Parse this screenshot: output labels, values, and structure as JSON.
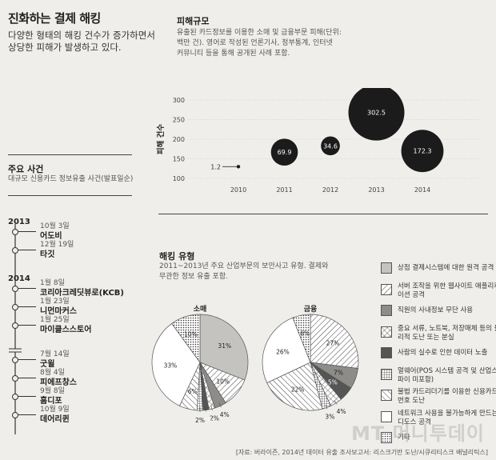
{
  "header": {
    "title": "진화하는 결제 해킹",
    "subtitle": "다양한 형태의 해킹 건수가 증가하면서 상당한 피해가 발생하고 있다."
  },
  "damage": {
    "title": "피해규모",
    "desc_lines": [
      "유출된 카드정보를 이용한 소매 및 금융부문 피해(단위:",
      "백만 건). 영어로 작성된 언론기사, 정부통계, 인터넷",
      "커뮤니티 등을 통해 공개된 사례 포함."
    ]
  },
  "chart_data": [
    {
      "type": "scatter",
      "ylabel": "피해 건수",
      "xlabel": "",
      "ylim": [
        100,
        300
      ],
      "yticks": [
        100,
        150,
        200,
        250,
        300
      ],
      "x": [
        "2010",
        "2011",
        "2012",
        "2013",
        "2014"
      ],
      "y": [
        130,
        167,
        183,
        268,
        170
      ],
      "values": [
        1.2,
        69.9,
        34.6,
        302.5,
        172.3
      ],
      "value_labels": [
        "1.2",
        "69.9",
        "34.6",
        "302.5",
        "172.3"
      ],
      "color": "#1b1b1b",
      "grid": true
    },
    {
      "type": "pie",
      "title": "소매",
      "slices": [
        {
          "category": "상점 결제시스템에 대한 원격 공격",
          "value": 31,
          "label": "31%"
        },
        {
          "category": "서버 조작을 위한 웹사이트 애플리케이션 공격",
          "value": 10,
          "label": "10%"
        },
        {
          "category": "직원의 사내정보 무단 사용",
          "value": 4,
          "label": "4%"
        },
        {
          "category": "중요 서류, 노트북, 저장매체 등의 물리적 도난 또는 분실",
          "value": 2,
          "label": "2%"
        },
        {
          "category": "사람의 실수로 인한 데이터 노출",
          "value": 2,
          "label": "2%"
        },
        {
          "category": "멀웨어(POS 시스템 공격 및 산업스파이 미포함)",
          "value": 2,
          "label": "2%"
        },
        {
          "category": "불법 카드리더기를 이용한 신용카드 번호 도난",
          "value": 6,
          "label": "6%"
        },
        {
          "category": "네트워크 사용을 불가능하게 만드는 디도스 공격",
          "value": 33,
          "label": "33%"
        },
        {
          "category": "기타",
          "value": 10,
          "label": "10%"
        }
      ]
    },
    {
      "type": "pie",
      "title": "금융",
      "slices": [
        {
          "category": "서버 조작을 위한 웹사이트 애플리케이션 공격",
          "value": 27,
          "label": "27%"
        },
        {
          "category": "직원의 사내정보 무단 사용",
          "value": 7,
          "label": "7%"
        },
        {
          "category": "사람의 실수로 인한 데이터 노출",
          "value": 5,
          "label": "5%"
        },
        {
          "category": "중요 서류, 노트북, 저장매체 등의 물리적 도난 또는 분실",
          "value": 4,
          "label": "4%"
        },
        {
          "category": "멀웨어(POS 시스템 공격 및 산업스파이 미포함)",
          "value": 3,
          "label": "3%"
        },
        {
          "category": "불법 카드리더기를 이용한 신용카드 번호 도난",
          "value": 22,
          "label": "22%"
        },
        {
          "category": "네트워크 사용을 불가능하게 만드는 디도스 공격",
          "value": 26,
          "label": "26%"
        },
        {
          "category": "기타",
          "value": 6,
          "label": "6%"
        }
      ]
    }
  ],
  "events": {
    "title": "주요 사건",
    "desc": "대규모 신용카드 정보유출 사건(발표일순)",
    "groups": [
      {
        "year": "2013",
        "items": [
          {
            "date": "10월 3일",
            "name": "어도비"
          },
          {
            "date": "12월 19일",
            "name": "타깃"
          }
        ]
      },
      {
        "year": "2014",
        "items": [
          {
            "date": "1월 8일",
            "name": "코리아크레딧뷰로(KCB)"
          },
          {
            "date": "1월 23일",
            "name": "니먼마커스"
          },
          {
            "date": "1월 25일",
            "name": "마이클스스토어"
          },
          {
            "date": "7월 14일",
            "name": "굿윌"
          },
          {
            "date": "8월 4일",
            "name": "피에프창스"
          },
          {
            "date": "9월 8일",
            "name": "홈디포"
          },
          {
            "date": "10월 9일",
            "name": "데어리퀸"
          }
        ]
      }
    ]
  },
  "hacking": {
    "title": "해킹 유형",
    "desc_lines": [
      "2011~2013년 주요 산업부문의 보안사고 유형. 결제와",
      "무관한 정보 유출 포함."
    ]
  },
  "legend": [
    {
      "label": "상점 결제시스템에 대한 원격 공격",
      "pattern": "lightgray"
    },
    {
      "label": "서버 조작을 위한 웹사이트 애플리케이션 공격",
      "pattern": "diag-dense"
    },
    {
      "label": "직원의 사내정보 무단 사용",
      "pattern": "midgray"
    },
    {
      "label": "중요 서류, 노트북, 저장매체 등의 물리적 도난 또는 분실",
      "pattern": "crosshatch"
    },
    {
      "label": "사람의 실수로 인한 데이터 노출",
      "pattern": "darkgray"
    },
    {
      "label": "멀웨어(POS 시스템 공격 및 산업스파이 미포함)",
      "pattern": "grid"
    },
    {
      "label": "불법 카드리더기를 이용한 신용카드 번호 도난",
      "pattern": "diag-rev"
    },
    {
      "label": "네트워크 사용을 불가능하게 만드는 디도스 공격",
      "pattern": "white"
    },
    {
      "label": "기타",
      "pattern": "dots"
    }
  ],
  "footer": {
    "source": "[자료: 버라이즌, 2014년 데이터 유출 조사보고서: 리스크기반 도난/시큐리티스크 배널리틱스]",
    "watermark": "MT 머니투데이"
  }
}
